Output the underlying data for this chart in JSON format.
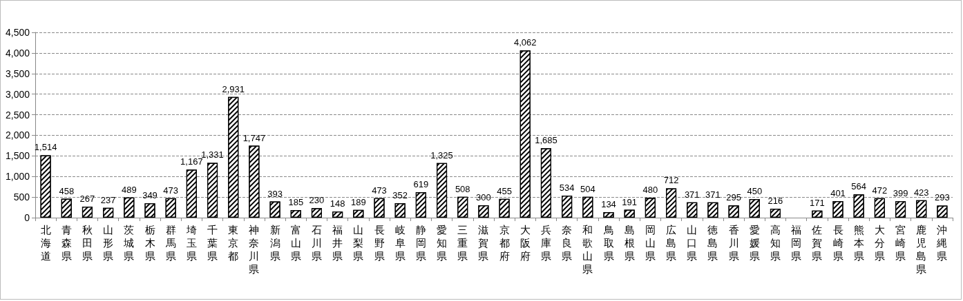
{
  "chart_data": {
    "type": "bar",
    "categories": [
      "北海道",
      "青森県",
      "秋田県",
      "山形県",
      "茨城県",
      "栃木県",
      "群馬県",
      "埼玉県",
      "千葉県",
      "東京都",
      "神奈川県",
      "新潟県",
      "富山県",
      "石川県",
      "福井県",
      "山梨県",
      "長野県",
      "岐阜県",
      "静岡県",
      "愛知県",
      "三重県",
      "滋賀県",
      "京都府",
      "大阪府",
      "兵庫県",
      "奈良県",
      "和歌山県",
      "鳥取県",
      "島根県",
      "岡山県",
      "広島県",
      "山口県",
      "徳島県",
      "香川県",
      "愛媛県",
      "高知県",
      "福岡県",
      "佐賀県",
      "長崎県",
      "熊本県",
      "大分県",
      "宮崎県",
      "鹿児島県",
      "沖縄県"
    ],
    "values": [
      1514,
      458,
      267,
      237,
      489,
      349,
      473,
      1167,
      1331,
      2931,
      1747,
      393,
      185,
      230,
      148,
      189,
      473,
      352,
      619,
      1325,
      508,
      300,
      455,
      4062,
      1685,
      534,
      504,
      134,
      191,
      480,
      712,
      371,
      371,
      295,
      450,
      216,
      null,
      171,
      401,
      564,
      472,
      399,
      423,
      293
    ],
    "value_labels": [
      "1,514",
      "458",
      "267",
      "237",
      "489",
      "349",
      "473",
      "1,167",
      "1,331",
      "2,931",
      "1,747",
      "393",
      "185",
      "230",
      "148",
      "189",
      "473",
      "352",
      "619",
      "1,325",
      "508",
      "300",
      "455",
      "4,062",
      "1,685",
      "534",
      "504",
      "134",
      "191",
      "480",
      "712",
      "371",
      "371",
      "295",
      "450",
      "216",
      null,
      "171",
      "401",
      "564",
      "472",
      "399",
      "423",
      "293"
    ],
    "color": "#000000",
    "ylim": [
      0,
      4500
    ],
    "yticks": [
      0,
      500,
      {
        "value": 1000,
        "label": "1,000"
      },
      {
        "value": 1500,
        "label": "1,500"
      },
      {
        "value": 2000,
        "label": "2,000"
      },
      {
        "value": 2500,
        "label": "2,500"
      },
      {
        "value": 3000,
        "label": "3,000"
      },
      {
        "value": 3500,
        "label": "3,500"
      },
      {
        "value": 4000,
        "label": "4,000"
      },
      {
        "value": 4500,
        "label": "4,500"
      }
    ],
    "grid": "y"
  }
}
